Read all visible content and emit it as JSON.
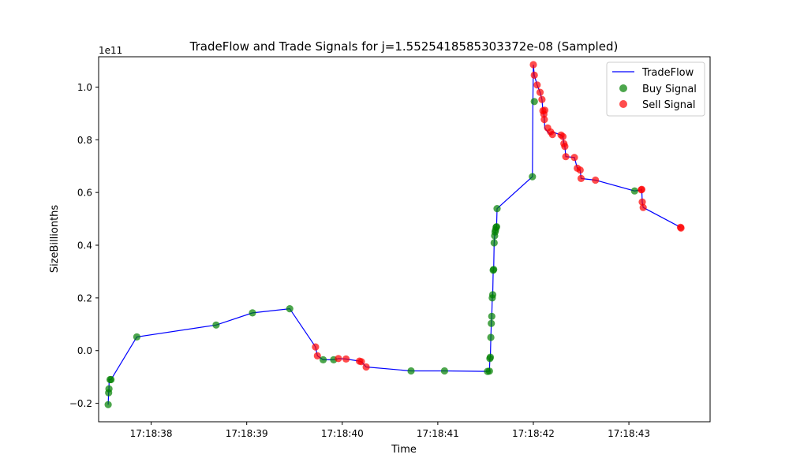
{
  "chart_data": {
    "type": "line+scatter",
    "title": "TradeFlow and Trade Signals for j=1.5525418585303372e-08 (Sampled)",
    "xlabel": "Time",
    "ylabel": "SizeBillionths",
    "y_offset_label": "1e11",
    "y_scale": 100000000000.0,
    "xlim": [
      "17:18:37.450",
      "17:18:43.850"
    ],
    "ylim": [
      -0.27,
      1.115
    ],
    "x_ticks": [
      "17:18:38",
      "17:18:39",
      "17:18:40",
      "17:18:41",
      "17:18:42",
      "17:18:43"
    ],
    "y_ticks": [
      -0.2,
      0.0,
      0.2,
      0.4,
      0.6,
      0.8,
      1.0
    ],
    "y_tick_labels": [
      "−0.2",
      "0.0",
      "0.2",
      "0.4",
      "0.6",
      "0.8",
      "1.0"
    ],
    "grid": false,
    "legend_position": "top-right",
    "legend": [
      "TradeFlow",
      "Buy Signal",
      "Sell Signal"
    ],
    "colors": {
      "line": "#0000ff",
      "buy": "#008000",
      "sell": "#ff0000"
    },
    "tradeflow": {
      "name": "TradeFlow",
      "x": [
        "17:18:37.550",
        "17:18:37.555",
        "17:18:37.558",
        "17:18:37.560",
        "17:18:37.565",
        "17:18:37.580",
        "17:18:37.850",
        "17:18:38.680",
        "17:18:39.060",
        "17:18:39.450",
        "17:18:39.720",
        "17:18:39.740",
        "17:18:39.800",
        "17:18:39.910",
        "17:18:39.960",
        "17:18:40.040",
        "17:18:40.180",
        "17:18:40.200",
        "17:18:40.250",
        "17:18:40.720",
        "17:18:41.070",
        "17:18:41.520",
        "17:18:41.540",
        "17:18:41.545",
        "17:18:41.550",
        "17:18:41.555",
        "17:18:41.560",
        "17:18:41.565",
        "17:18:41.570",
        "17:18:41.575",
        "17:18:41.580",
        "17:18:41.585",
        "17:18:41.590",
        "17:18:41.595",
        "17:18:41.600",
        "17:18:41.605",
        "17:18:41.610",
        "17:18:41.615",
        "17:18:41.620",
        "17:18:41.990",
        "17:18:41.995",
        "17:18:42.000",
        "17:18:42.010",
        "17:18:42.040",
        "17:18:42.070",
        "17:18:42.090",
        "17:18:42.100",
        "17:18:42.110",
        "17:18:42.115",
        "17:18:42.120",
        "17:18:42.150",
        "17:18:42.180",
        "17:18:42.200",
        "17:18:42.290",
        "17:18:42.310",
        "17:18:42.320",
        "17:18:42.330",
        "17:18:42.340",
        "17:18:42.430",
        "17:18:42.460",
        "17:18:42.490",
        "17:18:42.500",
        "17:18:42.650",
        "17:18:43.060",
        "17:18:43.130",
        "17:18:43.135",
        "17:18:43.140",
        "17:18:43.150",
        "17:18:43.540"
      ],
      "values": [
        -0.205,
        -0.16,
        -0.145,
        -0.11,
        -0.11,
        -0.11,
        0.052,
        0.097,
        0.143,
        0.159,
        0.014,
        -0.02,
        -0.035,
        -0.035,
        -0.03,
        -0.032,
        -0.04,
        -0.042,
        -0.062,
        -0.077,
        -0.077,
        -0.079,
        -0.078,
        -0.03,
        -0.025,
        0.05,
        0.103,
        0.13,
        0.2,
        0.212,
        0.305,
        0.308,
        0.409,
        0.436,
        0.45,
        0.458,
        0.468,
        0.47,
        0.539,
        0.66,
        0.945,
        1.085,
        1.045,
        1.008,
        0.98,
        0.953,
        0.91,
        0.897,
        0.877,
        0.845,
        0.83,
        0.82,
        0.83,
        0.818,
        0.812,
        0.785,
        0.775,
        0.736,
        0.733,
        0.692,
        0.685,
        0.653,
        0.647,
        0.606,
        0.61,
        0.612,
        0.564,
        0.543,
        0.468
      ]
    },
    "buy_signals": {
      "name": "Buy Signal",
      "x": [
        "17:18:37.550",
        "17:18:37.555",
        "17:18:37.558",
        "17:18:37.570",
        "17:18:37.580",
        "17:18:37.850",
        "17:18:38.680",
        "17:18:39.060",
        "17:18:39.450",
        "17:18:39.800",
        "17:18:39.910",
        "17:18:40.720",
        "17:18:41.070",
        "17:18:41.520",
        "17:18:41.540",
        "17:18:41.545",
        "17:18:41.550",
        "17:18:41.555",
        "17:18:41.560",
        "17:18:41.565",
        "17:18:41.570",
        "17:18:41.575",
        "17:18:41.580",
        "17:18:41.585",
        "17:18:41.590",
        "17:18:41.595",
        "17:18:41.600",
        "17:18:41.605",
        "17:18:41.610",
        "17:18:41.615",
        "17:18:41.620",
        "17:18:41.990",
        "17:18:42.010",
        "17:18:43.060"
      ],
      "values": [
        -0.205,
        -0.16,
        -0.145,
        -0.11,
        -0.11,
        0.052,
        0.097,
        0.143,
        0.159,
        -0.035,
        -0.035,
        -0.077,
        -0.077,
        -0.079,
        -0.078,
        -0.03,
        -0.025,
        0.05,
        0.103,
        0.13,
        0.2,
        0.212,
        0.305,
        0.308,
        0.409,
        0.436,
        0.45,
        0.458,
        0.468,
        0.47,
        0.539,
        0.66,
        0.945,
        0.606
      ]
    },
    "sell_signals": {
      "name": "Sell Signal",
      "x": [
        "17:18:39.720",
        "17:18:39.740",
        "17:18:39.960",
        "17:18:40.040",
        "17:18:40.180",
        "17:18:40.200",
        "17:18:40.250",
        "17:18:42.000",
        "17:18:42.010",
        "17:18:42.040",
        "17:18:42.070",
        "17:18:42.090",
        "17:18:42.100",
        "17:18:42.110",
        "17:18:42.115",
        "17:18:42.120",
        "17:18:42.150",
        "17:18:42.180",
        "17:18:42.200",
        "17:18:42.290",
        "17:18:42.310",
        "17:18:42.320",
        "17:18:42.330",
        "17:18:42.340",
        "17:18:42.430",
        "17:18:42.460",
        "17:18:42.490",
        "17:18:42.500",
        "17:18:42.650",
        "17:18:43.130",
        "17:18:43.135",
        "17:18:43.140",
        "17:18:43.150",
        "17:18:43.540",
        "17:18:43.545"
      ],
      "values": [
        0.014,
        -0.02,
        -0.03,
        -0.032,
        -0.04,
        -0.042,
        -0.062,
        1.085,
        1.045,
        1.008,
        0.98,
        0.953,
        0.91,
        0.897,
        0.877,
        0.912,
        0.845,
        0.83,
        0.82,
        0.818,
        0.812,
        0.785,
        0.775,
        0.736,
        0.733,
        0.692,
        0.685,
        0.653,
        0.647,
        0.61,
        0.612,
        0.564,
        0.543,
        0.468,
        0.465
      ]
    }
  }
}
